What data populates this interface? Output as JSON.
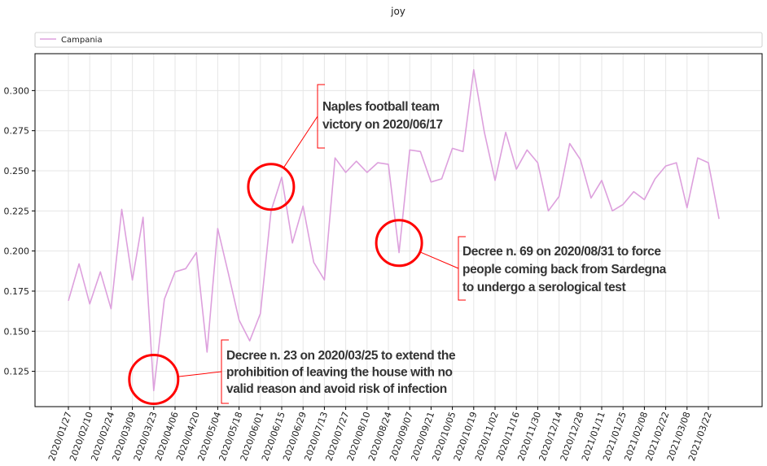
{
  "chart_data": {
    "type": "line",
    "title": "joy",
    "xlabel": "",
    "ylabel": "",
    "ylim": [
      0.103,
      0.323
    ],
    "y_ticks": [
      0.125,
      0.15,
      0.175,
      0.2,
      0.225,
      0.25,
      0.275,
      0.3
    ],
    "y_tick_labels": [
      "0.125",
      "0.150",
      "0.175",
      "0.200",
      "0.225",
      "0.250",
      "0.275",
      "0.300"
    ],
    "x_tick_labels": [
      "2020/01/27",
      "2020/02/10",
      "2020/02/24",
      "2020/03/09",
      "2020/03/23",
      "2020/04/06",
      "2020/04/20",
      "2020/05/04",
      "2020/05/18",
      "2020/06/01",
      "2020/06/15",
      "2020/06/29",
      "2020/07/13",
      "2020/07/27",
      "2020/08/10",
      "2020/08/24",
      "2020/09/07",
      "2020/09/21",
      "2020/10/05",
      "2020/10/19",
      "2020/11/02",
      "2020/11/16",
      "2020/11/30",
      "2020/12/14",
      "2020/12/28",
      "2021/01/11",
      "2021/01/25",
      "2021/02/08",
      "2021/02/22",
      "2021/03/08",
      "2021/03/22"
    ],
    "grid": true,
    "legend_position": "top",
    "series": [
      {
        "name": "Campania",
        "color": "#dda0dd",
        "x": [
          "2020/01/27",
          "2020/02/03",
          "2020/02/10",
          "2020/02/17",
          "2020/02/24",
          "2020/03/02",
          "2020/03/09",
          "2020/03/16",
          "2020/03/23",
          "2020/03/30",
          "2020/04/06",
          "2020/04/13",
          "2020/04/20",
          "2020/04/27",
          "2020/05/04",
          "2020/05/11",
          "2020/05/18",
          "2020/05/25",
          "2020/06/01",
          "2020/06/08",
          "2020/06/15",
          "2020/06/22",
          "2020/06/29",
          "2020/07/06",
          "2020/07/13",
          "2020/07/20",
          "2020/07/27",
          "2020/08/03",
          "2020/08/10",
          "2020/08/17",
          "2020/08/24",
          "2020/08/31",
          "2020/09/07",
          "2020/09/14",
          "2020/09/21",
          "2020/09/28",
          "2020/10/05",
          "2020/10/12",
          "2020/10/19",
          "2020/10/26",
          "2020/11/02",
          "2020/11/09",
          "2020/11/16",
          "2020/11/23",
          "2020/11/30",
          "2020/12/07",
          "2020/12/14",
          "2020/12/21",
          "2020/12/28",
          "2021/01/04",
          "2021/01/11",
          "2021/01/18",
          "2021/01/25",
          "2021/02/01",
          "2021/02/08",
          "2021/02/15",
          "2021/02/22",
          "2021/03/01",
          "2021/03/08",
          "2021/03/15",
          "2021/03/22",
          "2021/03/29"
        ],
        "values": [
          0.169,
          0.192,
          0.167,
          0.187,
          0.164,
          0.226,
          0.182,
          0.221,
          0.113,
          0.17,
          0.187,
          0.189,
          0.199,
          0.137,
          0.214,
          0.186,
          0.157,
          0.144,
          0.161,
          0.225,
          0.246,
          0.205,
          0.228,
          0.193,
          0.182,
          0.258,
          0.249,
          0.256,
          0.249,
          0.255,
          0.254,
          0.199,
          0.263,
          0.262,
          0.243,
          0.245,
          0.264,
          0.262,
          0.313,
          0.274,
          0.244,
          0.274,
          0.251,
          0.263,
          0.255,
          0.225,
          0.234,
          0.267,
          0.257,
          0.233,
          0.244,
          0.225,
          0.229,
          0.237,
          0.232,
          0.245,
          0.253,
          0.255,
          0.227,
          0.258,
          0.255,
          0.22
        ]
      }
    ],
    "annotations": [
      {
        "lines": [
          "Decree n. 23 on 2020/03/25 to extend the",
          "prohibition of leaving the house with no",
          "valid reason and avoid risk of infection"
        ],
        "x": "2020/03/23",
        "y": 0.12,
        "color": "#ff0000"
      },
      {
        "lines": [
          "Naples football team",
          "victory on 2020/06/17"
        ],
        "x": "2020/06/08",
        "y": 0.24,
        "color": "#ff0000"
      },
      {
        "lines": [
          "Decree n. 69 on 2020/08/31 to force",
          "people coming back from Sardegna",
          "to undergo a serological test"
        ],
        "x": "2020/08/31",
        "y": 0.205,
        "color": "#ff0000"
      }
    ]
  }
}
